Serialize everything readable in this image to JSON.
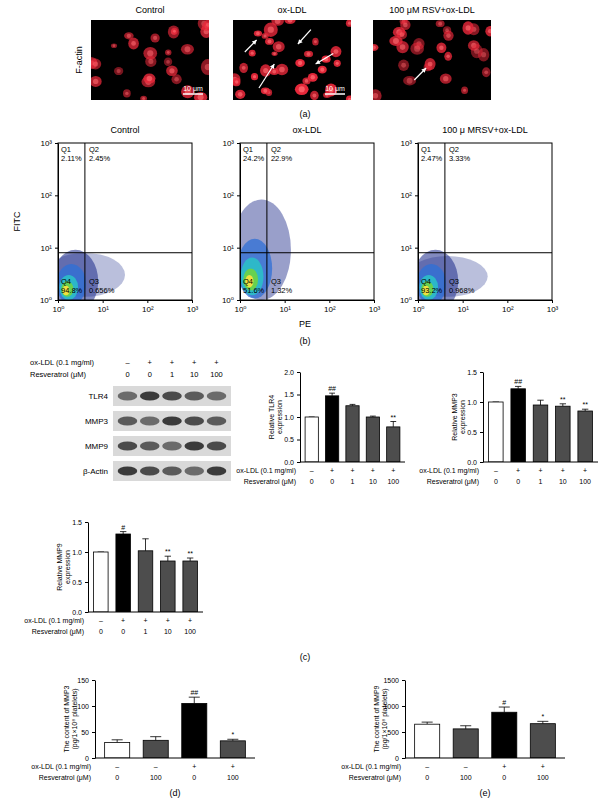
{
  "chart_data": [
    {
      "type": "image",
      "panel": "(a)",
      "row_label": "F-actin",
      "columns": [
        "Control",
        "ox-LDL",
        "100 μM RSV+ox-LDL"
      ],
      "scale_bar_label": "10 μm"
    },
    {
      "type": "scatter",
      "panel": "(b)",
      "log": true,
      "xlabel": "PE",
      "ylabel": "FITC",
      "xlim": [
        1,
        1000
      ],
      "ylim": [
        1,
        1000
      ],
      "xticks": [
        {
          "value": 1,
          "label": "10⁰"
        },
        {
          "value": 10,
          "label": "10¹"
        },
        {
          "value": 100,
          "label": "10²"
        },
        {
          "value": 1000,
          "label": "10³"
        }
      ],
      "yticks": [
        {
          "value": 1,
          "label": "10⁰"
        },
        {
          "value": 10,
          "label": "10¹"
        },
        {
          "value": 100,
          "label": "10²"
        },
        {
          "value": 1000,
          "label": "10³"
        }
      ],
      "gate_x": 4,
      "gate_y": 8,
      "quadrant_names": [
        "Q1",
        "Q2",
        "Q3",
        "Q4"
      ],
      "plots": [
        {
          "title": "Control",
          "quadrant_labels": [
            "2.11%",
            "2.45%",
            "0.656%",
            "94.8%"
          ]
        },
        {
          "title": "ox-LDL",
          "quadrant_labels": [
            "24.2%",
            "22.9%",
            "1.32%",
            "51.6%"
          ]
        },
        {
          "title": "100 μ MRSV+ox-LDL",
          "quadrant_labels": [
            "2.47%",
            "3.33%",
            "0.968%",
            "93.2%"
          ]
        }
      ]
    },
    {
      "type": "blot",
      "panel": "(c)",
      "x_rows": [
        {
          "label": "ox-LDL (0.1 mg/ml)",
          "ticks": [
            "–",
            "+",
            "+",
            "+",
            "+"
          ]
        },
        {
          "label": "Resveratrol (μM)",
          "ticks": [
            0,
            0,
            1,
            10,
            100
          ]
        }
      ],
      "bands": [
        "TLR4",
        "MMP3",
        "MMP9",
        "β-Actin"
      ]
    },
    {
      "type": "bar",
      "ylabel": [
        "Relative TLR4",
        "expression"
      ],
      "x_rows": [
        {
          "label": "ox-LDL (0.1 mg/ml)",
          "ticks": [
            "–",
            "+",
            "+",
            "+",
            "+"
          ]
        },
        {
          "label": "Resveratrol (μM)",
          "ticks": [
            0,
            0,
            1,
            10,
            100
          ]
        }
      ],
      "values": [
        1.0,
        1.47,
        1.25,
        1.0,
        0.78
      ],
      "errors": [
        0,
        0.06,
        0.03,
        0.02,
        0.12
      ],
      "significance": [
        null,
        "##",
        null,
        null,
        "**"
      ],
      "colors": [
        "#ffffff",
        "#000000",
        "#4d4d4d",
        "#4d4d4d",
        "#4d4d4d"
      ],
      "ylim": [
        0,
        2
      ],
      "yticks": [
        {
          "value": 0,
          "label": "0.0"
        },
        {
          "value": 0.5,
          "label": "0.5"
        },
        {
          "value": 1,
          "label": "1.0"
        },
        {
          "value": 1.5,
          "label": "1.5"
        },
        {
          "value": 2,
          "label": "2.0"
        }
      ]
    },
    {
      "type": "bar",
      "ylabel": [
        "Relative MMP3",
        "expression"
      ],
      "x_rows": [
        {
          "label": "ox-LDL (0.1 mg/ml)",
          "ticks": [
            "–",
            "+",
            "+",
            "+",
            "+"
          ]
        },
        {
          "label": "Resveratrol (μM)",
          "ticks": [
            0,
            0,
            1,
            10,
            100
          ]
        }
      ],
      "values": [
        1.0,
        1.22,
        0.95,
        0.93,
        0.85
      ],
      "errors": [
        0,
        0.04,
        0.08,
        0.04,
        0.03
      ],
      "significance": [
        null,
        "##",
        null,
        "**",
        "**"
      ],
      "colors": [
        "#ffffff",
        "#000000",
        "#4d4d4d",
        "#4d4d4d",
        "#4d4d4d"
      ],
      "ylim": [
        0,
        1.5
      ],
      "yticks": [
        {
          "value": 0,
          "label": "0.0"
        },
        {
          "value": 0.5,
          "label": "0.5"
        },
        {
          "value": 1,
          "label": "1.0"
        },
        {
          "value": 1.5,
          "label": "1.5"
        }
      ]
    },
    {
      "type": "bar",
      "ylabel": [
        "Relative MMP9",
        "expression"
      ],
      "x_rows": [
        {
          "label": "ox-LDL (0.1 mg/ml)",
          "ticks": [
            "–",
            "+",
            "+",
            "+",
            "+"
          ]
        },
        {
          "label": "Resveratrol (μM)",
          "ticks": [
            0,
            0,
            1,
            10,
            100
          ]
        }
      ],
      "values": [
        1.0,
        1.3,
        1.02,
        0.85,
        0.85
      ],
      "errors": [
        0,
        0.04,
        0.2,
        0.08,
        0.05
      ],
      "significance": [
        null,
        "#",
        null,
        "**",
        "**"
      ],
      "colors": [
        "#ffffff",
        "#000000",
        "#4d4d4d",
        "#4d4d4d",
        "#4d4d4d"
      ],
      "ylim": [
        0,
        1.5
      ],
      "yticks": [
        {
          "value": 0,
          "label": "0.0"
        },
        {
          "value": 0.5,
          "label": "0.5"
        },
        {
          "value": 1,
          "label": "1.0"
        },
        {
          "value": 1.5,
          "label": "1.5"
        }
      ]
    },
    {
      "type": "bar",
      "panel": "(d)",
      "ylabel": [
        "The content of MMP3",
        "(pg/1×10⁸ platelets)"
      ],
      "x_rows": [
        {
          "label": "ox-LDL (0.1 mg/ml)",
          "ticks": [
            "–",
            "–",
            "+",
            "+"
          ]
        },
        {
          "label": "Resveratrol (μM)",
          "ticks": [
            0,
            100,
            0,
            100
          ]
        }
      ],
      "values": [
        30,
        34,
        105,
        33
      ],
      "errors": [
        5,
        7,
        12,
        3
      ],
      "significance": [
        null,
        null,
        "##",
        "*"
      ],
      "colors": [
        "#ffffff",
        "#4d4d4d",
        "#000000",
        "#4d4d4d"
      ],
      "ylim": [
        0,
        150
      ],
      "yticks": [
        0,
        50,
        100,
        150
      ]
    },
    {
      "type": "bar",
      "panel": "(e)",
      "ylabel": [
        "The content of MMP9",
        "(pg/1×10⁸ platelets)"
      ],
      "x_rows": [
        {
          "label": "ox-LDL (0.1 mg/ml)",
          "ticks": [
            "–",
            "–",
            "+",
            "+"
          ]
        },
        {
          "label": "Resveratrol (μM)",
          "ticks": [
            0,
            100,
            0,
            100
          ]
        }
      ],
      "values": [
        650,
        560,
        880,
        660
      ],
      "errors": [
        40,
        60,
        100,
        45
      ],
      "significance": [
        null,
        null,
        "#",
        "*"
      ],
      "colors": [
        "#ffffff",
        "#4d4d4d",
        "#000000",
        "#4d4d4d"
      ],
      "ylim": [
        0,
        1500
      ],
      "yticks": [
        0,
        500,
        1000,
        1500
      ]
    }
  ]
}
